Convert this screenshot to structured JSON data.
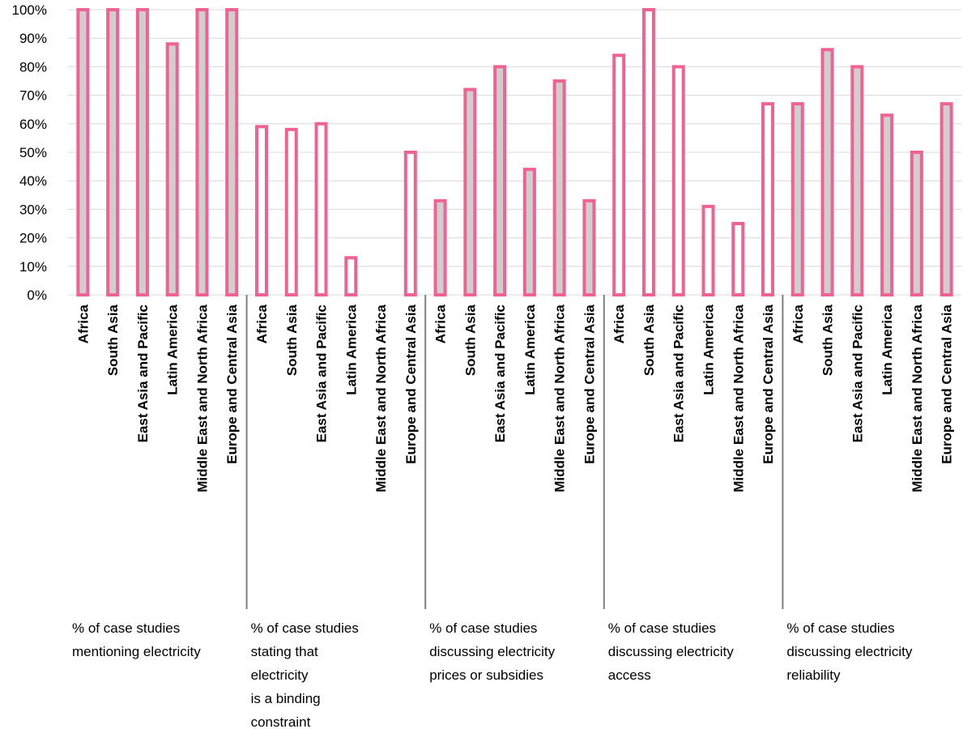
{
  "chart_data": {
    "type": "bar",
    "ylim": [
      0,
      100
    ],
    "yticks": [
      "0%",
      "10%",
      "20%",
      "30%",
      "40%",
      "50%",
      "60%",
      "70%",
      "80%",
      "90%",
      "100%"
    ],
    "grid": true,
    "colors": {
      "bar_stroke": "#F06292",
      "bar_fill_gray": "#CFCFCF",
      "bar_fill_white": "#FFFFFF",
      "grid": "#D9D9D9",
      "separator": "#808080"
    },
    "categories": [
      "Africa",
      "South Asia",
      "East Asia and Pacific",
      "Latin America",
      "Middle East and North Africa",
      "Europe and Central Asia"
    ],
    "groups": [
      {
        "label_lines": [
          "% of case studies",
          "mentioning electricity"
        ],
        "fill": "gray",
        "values": [
          100,
          100,
          100,
          88,
          100,
          100
        ]
      },
      {
        "label_lines": [
          "% of case studies",
          "stating that",
          "electricity",
          "is a binding",
          "constraint"
        ],
        "fill": "white",
        "values": [
          59,
          58,
          60,
          13,
          0,
          50
        ]
      },
      {
        "label_lines": [
          "% of case studies",
          "discussing electricity",
          "prices or subsidies"
        ],
        "fill": "gray",
        "values": [
          33,
          72,
          80,
          44,
          75,
          33
        ]
      },
      {
        "label_lines": [
          "% of case studies",
          "discussing electricity",
          "access"
        ],
        "fill": "white",
        "values": [
          84,
          100,
          80,
          31,
          25,
          67
        ]
      },
      {
        "label_lines": [
          "% of case studies",
          "discussing electricity",
          "reliability"
        ],
        "fill": "gray",
        "values": [
          67,
          86,
          80,
          63,
          50,
          67
        ]
      }
    ]
  }
}
